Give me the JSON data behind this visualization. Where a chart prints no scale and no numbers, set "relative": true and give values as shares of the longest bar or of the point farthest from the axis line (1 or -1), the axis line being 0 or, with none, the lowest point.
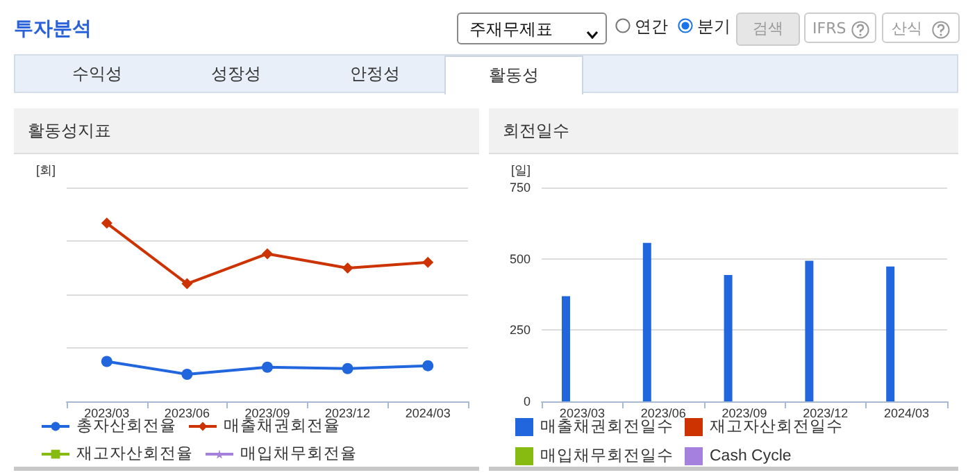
{
  "chart_data": [
    {
      "type": "other",
      "title": "투자분석",
      "annotations": [
        "주재무제표",
        "연간",
        "분기",
        "검색",
        "IFRS",
        "산식",
        "수익성",
        "성장성",
        "안정성",
        "활동성"
      ]
    },
    {
      "type": "line",
      "title": "활동성지표",
      "ylabel": "[회]",
      "categories": [
        "2023/03",
        "2023/06",
        "2023/09",
        "2023/12",
        "2024/03"
      ],
      "relative": true,
      "grid": "y",
      "legend": "bottom",
      "series": [
        {
          "name": "총자산회전율",
          "color": "#2266dd",
          "marker": "circle",
          "values": [
            0.224,
            0.152,
            0.192,
            0.184,
            0.2
          ]
        },
        {
          "name": "매출채권회전율",
          "color": "#cc3300",
          "marker": "diamond",
          "values": [
            1,
            0.66,
            0.828,
            0.748,
            0.78
          ]
        },
        {
          "name": "재고자산회전율",
          "color": "#88bb11",
          "marker": "square",
          "values": [
            null,
            null,
            null,
            null,
            null
          ]
        },
        {
          "name": "매입채무회전율",
          "color": "#a680dd",
          "marker": "star",
          "values": [
            null,
            null,
            null,
            null,
            null
          ]
        }
      ]
    },
    {
      "type": "bar",
      "title": "회전일수",
      "ylabel": "[일]",
      "categories": [
        "2023/03",
        "2023/06",
        "2023/09",
        "2023/12",
        "2024/03"
      ],
      "ylim": [
        0,
        750
      ],
      "yticks": [
        0,
        250,
        500,
        750
      ],
      "grid": "y",
      "legend": "bottom",
      "series": [
        {
          "name": "매출채권회전일수",
          "color": "#2266dd",
          "values": [
            369,
            556,
            443,
            493,
            473
          ]
        },
        {
          "name": "재고자산회전일수",
          "color": "#cc3300",
          "values": [
            null,
            null,
            null,
            null,
            null
          ]
        },
        {
          "name": "매입채무회전일수",
          "color": "#88bb11",
          "values": [
            null,
            null,
            null,
            null,
            null
          ]
        },
        {
          "name": "Cash Cycle",
          "color": "#a680dd",
          "values": [
            null,
            null,
            null,
            null,
            null
          ]
        }
      ]
    }
  ]
}
